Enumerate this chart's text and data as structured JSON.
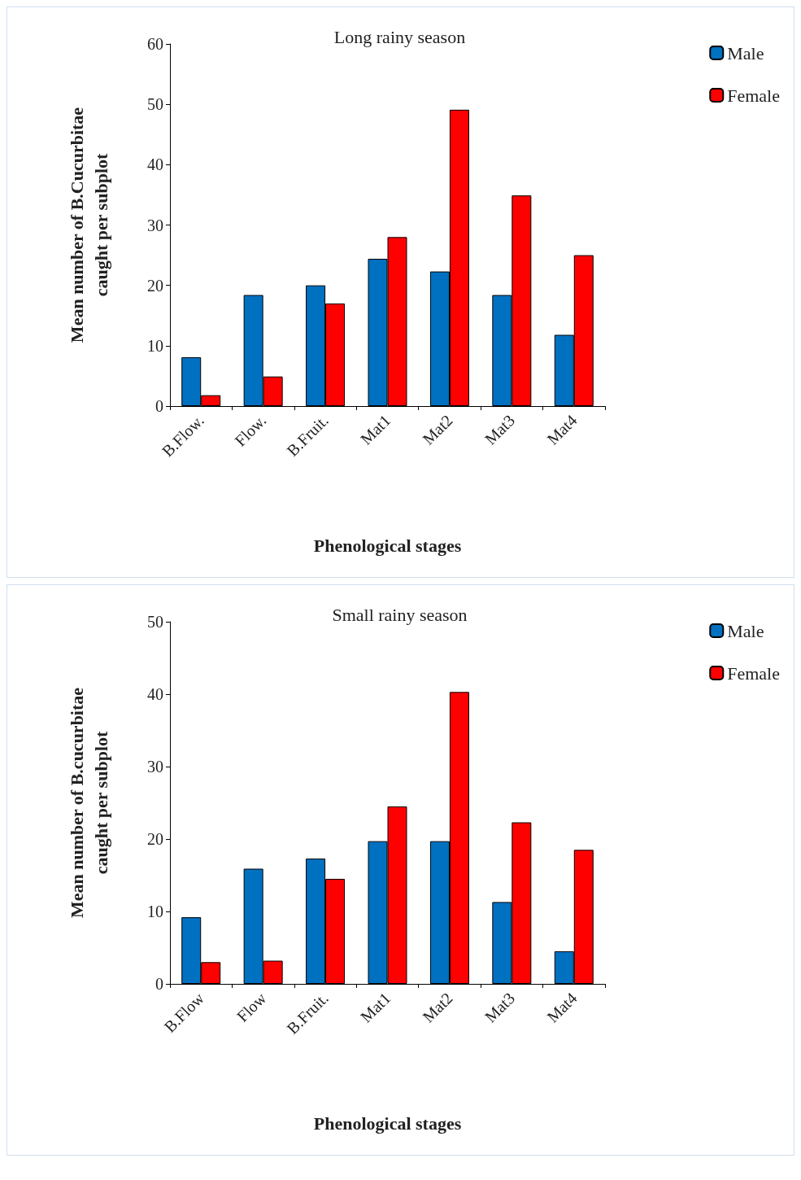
{
  "chart_data": [
    {
      "type": "bar",
      "title": "Long rainy season",
      "xlabel": "Phenological stages",
      "ylabel": "Mean number of B.Cucurbitae\ncaught per subplot",
      "categories": [
        "B.Flow.",
        "Flow.",
        "B.Fruit.",
        "Mat1",
        "Mat2",
        "Mat3",
        "Mat4"
      ],
      "series": [
        {
          "name": "Male",
          "color": "#0070c0",
          "values": [
            8.1,
            18.4,
            20,
            24.4,
            22.3,
            18.4,
            11.8
          ]
        },
        {
          "name": "Female",
          "color": "#ff0000",
          "values": [
            1.8,
            4.9,
            17,
            28,
            49.1,
            34.9,
            25
          ]
        }
      ],
      "ylim": [
        0,
        60
      ],
      "yticks": [
        0,
        10,
        20,
        30,
        40,
        50,
        60
      ],
      "grid": false,
      "legend": "top right"
    },
    {
      "type": "bar",
      "title": "Small rainy season",
      "xlabel": "Phenological stages",
      "ylabel": "Mean number of B.cucurbitae\ncaught per subplot",
      "categories": [
        "B.Flow",
        "Flow",
        "B.Fruit.",
        "Mat1",
        "Mat2",
        "Mat3",
        "Mat4"
      ],
      "series": [
        {
          "name": "Male",
          "color": "#0070c0",
          "values": [
            9.2,
            15.9,
            17.3,
            19.7,
            19.7,
            11.3,
            4.5
          ]
        },
        {
          "name": "Female",
          "color": "#ff0000",
          "values": [
            3,
            3.2,
            14.5,
            24.5,
            40.3,
            22.3,
            18.5
          ]
        }
      ],
      "ylim": [
        0,
        50
      ],
      "yticks": [
        0,
        10,
        20,
        30,
        40,
        50
      ],
      "grid": false,
      "legend": "top right"
    }
  ]
}
